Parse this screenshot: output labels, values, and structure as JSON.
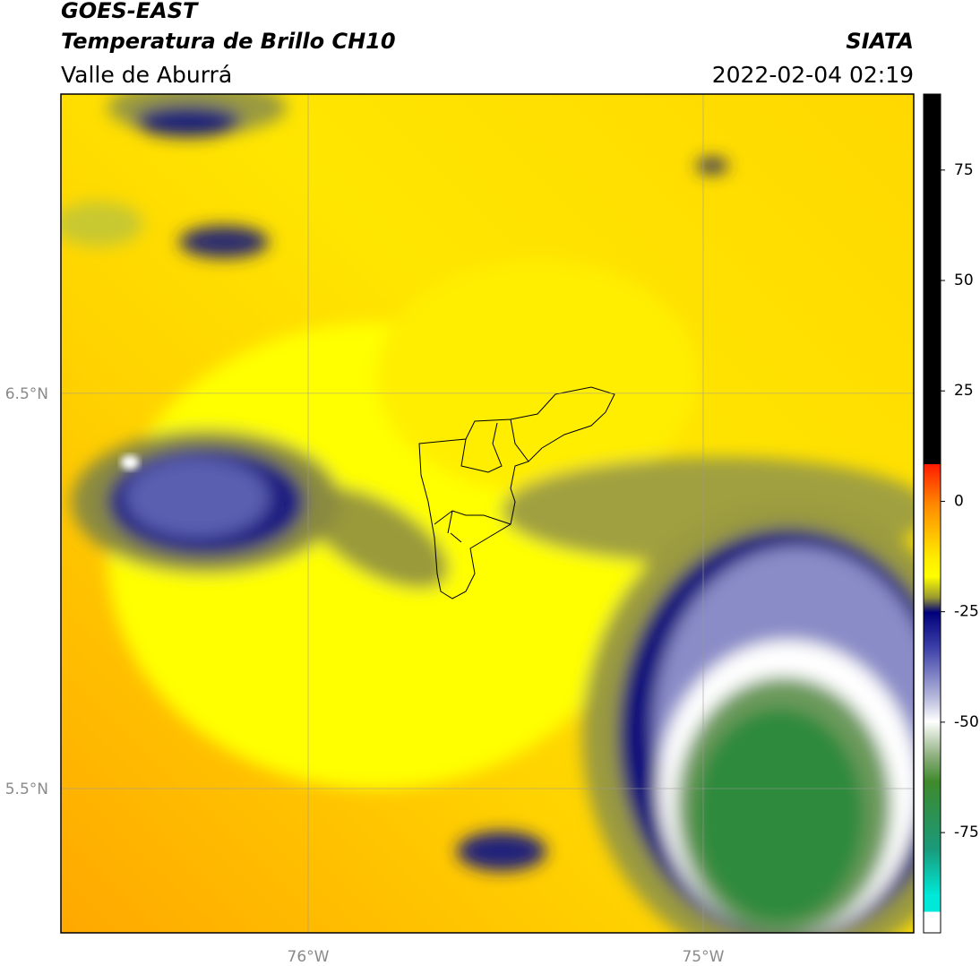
{
  "header": {
    "title": "GOES-EAST",
    "subtitle": "Temperatura de Brillo CH10",
    "region": "Valle de Aburrá",
    "source": "SIATA",
    "datetime": "2022-02-04 02:19"
  },
  "map": {
    "lon_lim": [
      -76.626,
      -74.467
    ],
    "lat_lim": [
      5.135,
      7.257
    ],
    "lon_ticks": [
      {
        "value": -76,
        "label": "76°W"
      },
      {
        "value": -75,
        "label": "75°W"
      }
    ],
    "lat_ticks": [
      {
        "value": 6.5,
        "label": "6.5°N"
      },
      {
        "value": 5.5,
        "label": "5.5°N"
      }
    ]
  },
  "colorbar": {
    "lim": [
      -97.7,
      92.2
    ],
    "ticks": [
      75,
      50,
      25,
      0,
      -25,
      -50,
      -75
    ]
  }
}
